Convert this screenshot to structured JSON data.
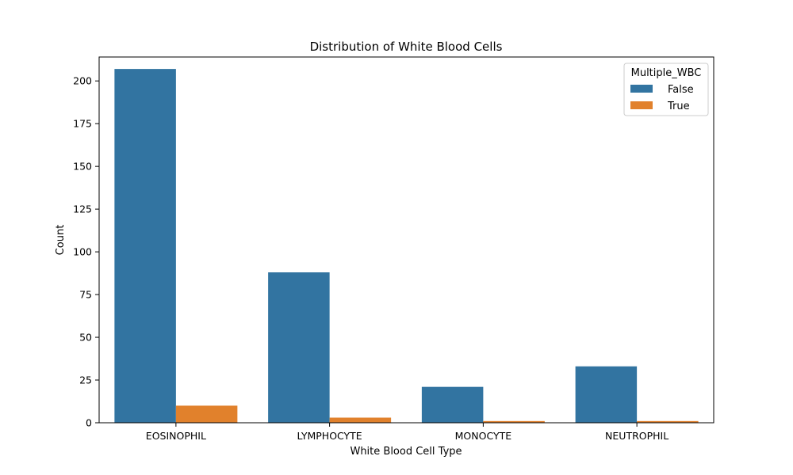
{
  "chart_data": {
    "type": "bar",
    "title": "Distribution of White Blood Cells",
    "xlabel": "White Blood Cell Type",
    "ylabel": "Count",
    "categories": [
      "EOSINOPHIL",
      "LYMPHOCYTE",
      "MONOCYTE",
      "NEUTROPHIL"
    ],
    "series": [
      {
        "name": "False",
        "values": [
          207,
          88,
          21,
          33
        ],
        "color": "#3274a1"
      },
      {
        "name": "True",
        "values": [
          10,
          3,
          1,
          1
        ],
        "color": "#e1812c"
      }
    ],
    "ylim": [
      0,
      214
    ],
    "yticks": [
      0,
      25,
      50,
      75,
      100,
      125,
      150,
      175,
      200
    ],
    "grid": false,
    "legend": {
      "title": "Multiple_WBC",
      "placement": "top-right"
    }
  }
}
